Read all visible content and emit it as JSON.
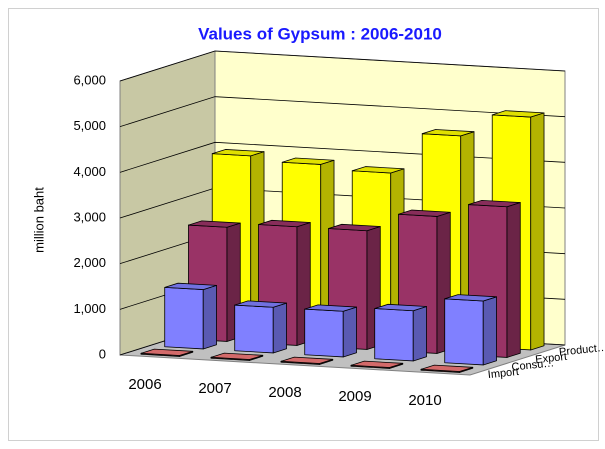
{
  "chart_data": {
    "type": "bar3d",
    "title": "Values of Gypsum : 2006-2010",
    "y_label": "million baht",
    "categories": [
      "2006",
      "2007",
      "2008",
      "2009",
      "2010"
    ],
    "series": [
      {
        "name": "Import",
        "color": "#f07878",
        "values": [
          20,
          20,
          20,
          20,
          20
        ]
      },
      {
        "name": "Consu…",
        "color": "#8080ff",
        "values": [
          1300,
          1000,
          1000,
          1100,
          1400
        ]
      },
      {
        "name": "Export",
        "color": "#993366",
        "values": [
          2500,
          2600,
          2600,
          3000,
          3300
        ]
      },
      {
        "name": "Product…",
        "color": "#ffff00",
        "values": [
          3900,
          3800,
          3700,
          4600,
          5100
        ]
      }
    ],
    "ylim": [
      0,
      6000
    ],
    "yticks": [
      0,
      {
        "value": 1000,
        "label": "1,000"
      },
      {
        "value": 2000,
        "label": "2,000"
      },
      {
        "value": 3000,
        "label": "3,000"
      },
      {
        "value": 4000,
        "label": "4,000"
      },
      {
        "value": 5000,
        "label": "5,000"
      },
      {
        "value": 6000,
        "label": "6,000"
      }
    ],
    "grid": true
  }
}
